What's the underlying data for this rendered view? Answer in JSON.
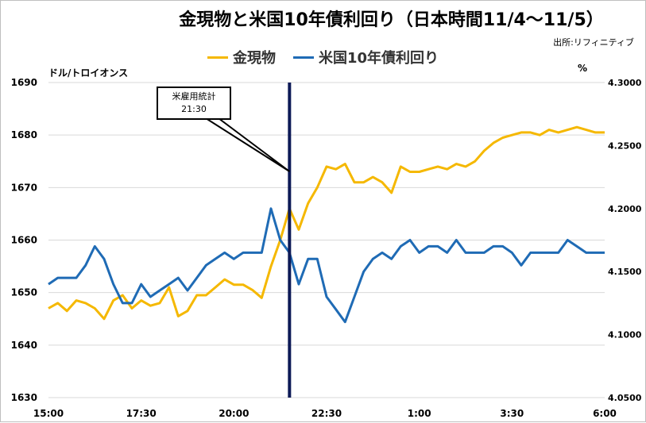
{
  "title": "金現物と米国10年債利回り（日本時間11/4～11/5）",
  "source": "出所:リフィニティブ",
  "units": {
    "left": "ドル/トロイオンス",
    "right": "%"
  },
  "annotation": {
    "line1": "米雇用統計",
    "line2": "21:30",
    "time": "21:30"
  },
  "colors": {
    "gold": "#f5b800",
    "yield": "#1f6bb5",
    "event_line": "#0d1a57",
    "grid": "#d9d9d9"
  },
  "chart_data": {
    "type": "line",
    "title": "金現物と米国10年債利回り（日本時間11/4～11/5）",
    "x_ticks": [
      "15:00",
      "17:30",
      "20:00",
      "22:30",
      "1:00",
      "3:30",
      "6:00"
    ],
    "x_range": [
      "15:00",
      "6:00"
    ],
    "y_left": {
      "label": "ドル/トロイオンス",
      "ticks": [
        "1630",
        "1640",
        "1650",
        "1660",
        "1670",
        "1680",
        "1690"
      ],
      "range": [
        1630,
        1690
      ]
    },
    "y_right": {
      "label": "%",
      "ticks": [
        "4.0500",
        "4.1000",
        "4.1500",
        "4.2000",
        "4.2500",
        "4.3000"
      ],
      "range": [
        4.05,
        4.3
      ]
    },
    "grid": "horizontal",
    "legend_position": "top",
    "x": [
      "15:00",
      "15:15",
      "15:30",
      "15:45",
      "16:00",
      "16:15",
      "16:30",
      "16:45",
      "17:00",
      "17:15",
      "17:30",
      "17:45",
      "18:00",
      "18:15",
      "18:30",
      "18:45",
      "19:00",
      "19:15",
      "19:30",
      "19:45",
      "20:00",
      "20:15",
      "20:30",
      "20:45",
      "21:00",
      "21:15",
      "21:30",
      "21:45",
      "22:00",
      "22:15",
      "22:30",
      "22:45",
      "23:00",
      "23:15",
      "23:30",
      "23:45",
      "0:00",
      "0:15",
      "0:30",
      "0:45",
      "1:00",
      "1:15",
      "1:30",
      "1:45",
      "2:00",
      "2:15",
      "2:30",
      "2:45",
      "3:00",
      "3:15",
      "3:30",
      "3:45",
      "4:00",
      "4:15",
      "4:30",
      "4:45",
      "5:00",
      "5:15",
      "5:30",
      "5:45",
      "6:00"
    ],
    "series": [
      {
        "name": "金現物",
        "axis": "left",
        "values": [
          1647.0,
          1648.0,
          1646.5,
          1648.5,
          1648.0,
          1647.0,
          1645.0,
          1648.5,
          1649.5,
          1647.0,
          1648.5,
          1647.5,
          1648.0,
          1651.0,
          1645.5,
          1646.5,
          1649.5,
          1649.5,
          1651.0,
          1652.5,
          1651.5,
          1651.5,
          1650.5,
          1649.0,
          1655.0,
          1660.0,
          1666.0,
          1662.0,
          1667.0,
          1670.0,
          1674.0,
          1673.5,
          1674.5,
          1671.0,
          1671.0,
          1672.0,
          1671.0,
          1669.0,
          1674.0,
          1673.0,
          1673.0,
          1673.5,
          1674.0,
          1673.5,
          1674.5,
          1674.0,
          1675.0,
          1677.0,
          1678.5,
          1679.5,
          1680.0,
          1680.5,
          1680.5,
          1680.0,
          1681.0,
          1680.5,
          1681.0,
          1681.5,
          1681.0,
          1680.5,
          1680.5
        ]
      },
      {
        "name": "米国10年債利回り",
        "axis": "right",
        "values": [
          4.14,
          4.145,
          4.145,
          4.145,
          4.155,
          4.17,
          4.16,
          4.14,
          4.125,
          4.125,
          4.14,
          4.13,
          4.135,
          4.14,
          4.145,
          4.135,
          4.145,
          4.155,
          4.16,
          4.165,
          4.16,
          4.165,
          4.165,
          4.165,
          4.2,
          4.175,
          4.165,
          4.14,
          4.16,
          4.16,
          4.13,
          4.12,
          4.11,
          4.13,
          4.15,
          4.16,
          4.165,
          4.16,
          4.17,
          4.175,
          4.165,
          4.17,
          4.17,
          4.165,
          4.175,
          4.165,
          4.165,
          4.165,
          4.17,
          4.17,
          4.165,
          4.155,
          4.165,
          4.165,
          4.165,
          4.165,
          4.175,
          4.17,
          4.165,
          4.165,
          4.165
        ]
      }
    ]
  }
}
